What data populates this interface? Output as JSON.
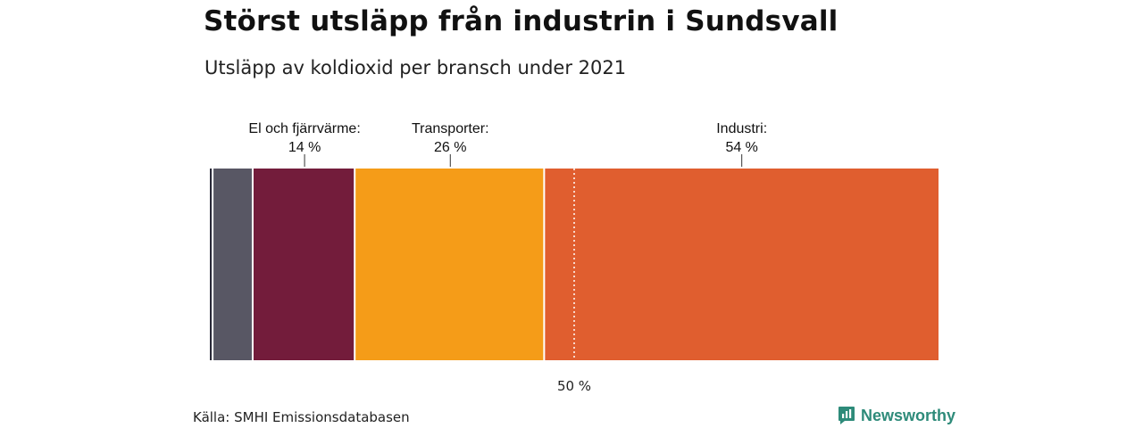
{
  "title": "Störst utsläpp från industrin i Sundsvall",
  "subtitle": "Utsläpp av koldioxid per bransch under 2021",
  "source": "Källa: SMHI Emissionsdatabasen",
  "brand": {
    "name": "Newsworthy",
    "icon": "newsworthy-logo-icon",
    "color": "#2e8b7a"
  },
  "chart_data": {
    "type": "bar",
    "orientation": "horizontal-stacked-100",
    "segments": [
      {
        "value": 0.5,
        "color": "#2a2a38",
        "label": "",
        "value_label": ""
      },
      {
        "value": 5.5,
        "color": "#585764",
        "label": "",
        "value_label": ""
      },
      {
        "value": 14,
        "color": "#731c3b",
        "label": "El och fjärrvärme:",
        "value_label": "14 %"
      },
      {
        "value": 26,
        "color": "#f59c18",
        "label": "Transporter:",
        "value_label": "26 %"
      },
      {
        "value": 54,
        "color": "#e05e2f",
        "label": "Industri:",
        "value_label": "54 %"
      }
    ],
    "reference_line": {
      "value": 50,
      "label": "50 %",
      "style": "dotted"
    },
    "xlim": [
      0,
      100
    ]
  }
}
